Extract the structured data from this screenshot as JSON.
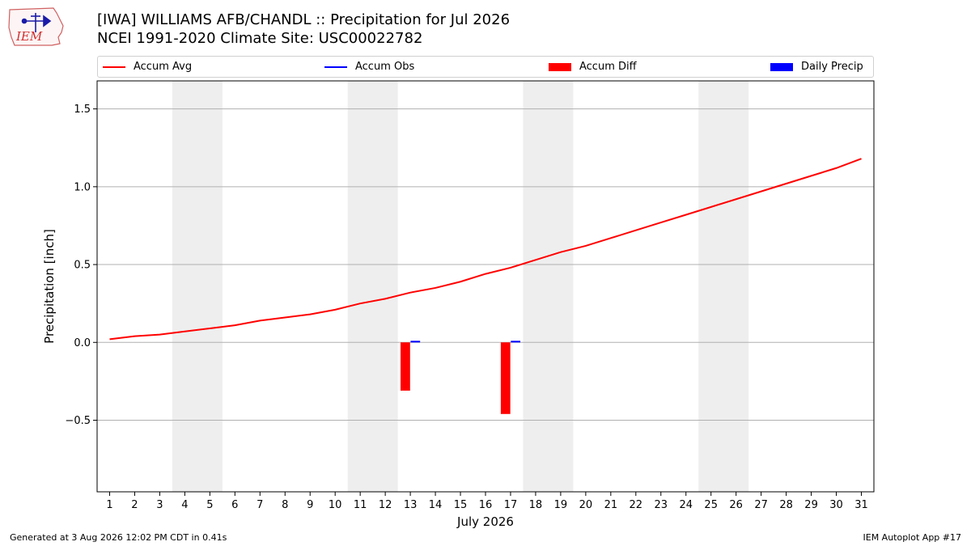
{
  "header": {
    "logo_text": "IEM",
    "title_line1": "[IWA] WILLIAMS AFB/CHANDL :: Precipitation for Jul 2026",
    "title_line2": "NCEI 1991-2020 Climate Site: USC00022782"
  },
  "legend": [
    {
      "label": "Accum Avg",
      "kind": "line",
      "color": "#ff0000"
    },
    {
      "label": "Accum Obs",
      "kind": "line",
      "color": "#0000ff"
    },
    {
      "label": "Accum Diff",
      "kind": "patch",
      "color": "#ff0000"
    },
    {
      "label": "Daily Precip",
      "kind": "patch",
      "color": "#0000ff"
    }
  ],
  "footer": {
    "generated": "Generated at 3 Aug 2026 12:02 PM CDT in 0.41s",
    "app": "IEM Autoplot App #17"
  },
  "chart_data": {
    "type": "line",
    "xlabel": "July 2026",
    "ylabel": "Precipitation [inch]",
    "x": [
      1,
      2,
      3,
      4,
      5,
      6,
      7,
      8,
      9,
      10,
      11,
      12,
      13,
      14,
      15,
      16,
      17,
      18,
      19,
      20,
      21,
      22,
      23,
      24,
      25,
      26,
      27,
      28,
      29,
      30,
      31
    ],
    "xlim": [
      0.5,
      31.5
    ],
    "ylim": [
      -0.96,
      1.68
    ],
    "yticks": [
      -0.5,
      0.0,
      0.5,
      1.0,
      1.5
    ],
    "ytick_labels": [
      "−0.5",
      "0.0",
      "0.5",
      "1.0",
      "1.5"
    ],
    "grid": "horizontal",
    "weekend_shading": [
      [
        3.5,
        5.5
      ],
      [
        10.5,
        12.5
      ],
      [
        17.5,
        19.5
      ],
      [
        24.5,
        26.5
      ]
    ],
    "shade_color": "#eeeeee",
    "series": [
      {
        "name": "Accum Avg",
        "kind": "line",
        "color": "#ff0000",
        "values": [
          0.02,
          0.04,
          0.05,
          0.07,
          0.09,
          0.11,
          0.14,
          0.16,
          0.18,
          0.21,
          0.25,
          0.28,
          0.32,
          0.35,
          0.39,
          0.44,
          0.48,
          0.53,
          0.58,
          0.62,
          0.67,
          0.72,
          0.77,
          0.82,
          0.87,
          0.92,
          0.97,
          1.02,
          1.07,
          1.12,
          1.18
        ]
      },
      {
        "name": "Accum Diff",
        "kind": "bar",
        "color": "#ff0000",
        "points": [
          {
            "x": 13,
            "value": -0.31
          },
          {
            "x": 17,
            "value": -0.46
          }
        ]
      },
      {
        "name": "Daily Precip",
        "kind": "bar",
        "color": "#0000ff",
        "points": [
          {
            "x": 13,
            "value": 0.01
          },
          {
            "x": 17,
            "value": 0.01
          }
        ]
      }
    ]
  }
}
